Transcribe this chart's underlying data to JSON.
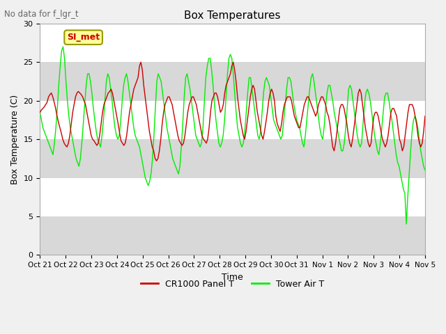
{
  "title": "Box Temperatures",
  "xlabel": "Time",
  "ylabel": "Box Temperature (C)",
  "figtext_no_data": "No data for f_lgr_t",
  "annotation_text": "SI_met",
  "ylim": [
    0,
    30
  ],
  "yticks": [
    0,
    5,
    10,
    15,
    20,
    25,
    30
  ],
  "xtick_labels": [
    "Oct 21",
    "Oct 22",
    "Oct 23",
    "Oct 24",
    "Oct 25",
    "Oct 26",
    "Oct 27",
    "Oct 28",
    "Oct 29",
    "Oct 30",
    "Oct 31",
    "Nov 1",
    "Nov 2",
    "Nov 3",
    "Nov 4",
    "Nov 5"
  ],
  "bands": [
    [
      0,
      5,
      "#d8d8d8"
    ],
    [
      5,
      10,
      "#ffffff"
    ],
    [
      10,
      15,
      "#d8d8d8"
    ],
    [
      15,
      20,
      "#ffffff"
    ],
    [
      20,
      25,
      "#d8d8d8"
    ],
    [
      25,
      30,
      "#ffffff"
    ]
  ],
  "legend_entries": [
    {
      "label": "CR1000 Panel T",
      "color": "#cc0000"
    },
    {
      "label": "Tower Air T",
      "color": "#00ee00"
    }
  ],
  "panel_t": [
    18.5,
    18.8,
    19.0,
    19.2,
    19.5,
    19.8,
    20.5,
    20.8,
    21.0,
    20.5,
    19.8,
    19.0,
    18.0,
    17.2,
    16.5,
    15.8,
    15.0,
    14.5,
    14.2,
    14.0,
    14.5,
    15.5,
    17.0,
    18.5,
    19.5,
    20.5,
    21.0,
    21.2,
    21.0,
    20.8,
    20.5,
    20.0,
    19.5,
    18.5,
    17.5,
    16.5,
    15.5,
    15.0,
    14.8,
    14.5,
    14.2,
    14.5,
    15.5,
    17.0,
    18.5,
    19.5,
    20.0,
    20.5,
    21.0,
    21.2,
    21.5,
    21.0,
    20.0,
    19.0,
    18.0,
    17.0,
    15.8,
    14.8,
    14.5,
    14.2,
    14.5,
    15.5,
    17.0,
    18.5,
    19.5,
    20.5,
    21.5,
    22.0,
    22.5,
    23.0,
    24.5,
    25.0,
    24.0,
    22.0,
    20.5,
    19.0,
    17.5,
    16.0,
    15.0,
    14.0,
    13.5,
    12.5,
    12.2,
    12.5,
    13.5,
    15.0,
    17.0,
    18.5,
    19.5,
    20.0,
    20.5,
    20.5,
    20.0,
    19.5,
    18.5,
    17.5,
    16.5,
    15.5,
    14.8,
    14.5,
    14.2,
    14.5,
    15.5,
    17.0,
    18.5,
    19.5,
    20.0,
    20.5,
    20.5,
    20.0,
    19.5,
    18.5,
    17.5,
    16.5,
    15.5,
    15.0,
    14.8,
    14.5,
    15.0,
    16.5,
    18.5,
    20.0,
    20.5,
    21.0,
    21.0,
    20.5,
    19.5,
    18.5,
    18.8,
    19.5,
    21.0,
    22.0,
    22.5,
    23.0,
    23.5,
    24.5,
    25.0,
    24.0,
    22.5,
    20.5,
    19.0,
    17.5,
    16.5,
    15.5,
    15.0,
    16.0,
    17.5,
    19.0,
    20.5,
    21.5,
    22.0,
    21.5,
    20.0,
    18.5,
    17.5,
    16.5,
    15.5,
    15.0,
    16.0,
    17.2,
    18.5,
    20.0,
    21.0,
    21.5,
    21.0,
    20.0,
    18.0,
    17.0,
    16.5,
    16.0,
    17.0,
    18.5,
    19.5,
    20.0,
    20.5,
    20.5,
    20.5,
    20.0,
    19.0,
    18.0,
    17.5,
    17.0,
    16.5,
    16.5,
    17.5,
    18.5,
    19.5,
    20.0,
    20.5,
    20.5,
    20.0,
    19.5,
    19.0,
    18.5,
    18.0,
    18.5,
    19.5,
    20.0,
    20.5,
    20.5,
    20.0,
    19.5,
    18.5,
    18.0,
    17.0,
    15.5,
    14.0,
    13.5,
    14.5,
    16.0,
    17.5,
    19.0,
    19.5,
    19.5,
    19.0,
    18.0,
    17.0,
    15.5,
    14.5,
    14.0,
    15.0,
    16.5,
    18.0,
    19.5,
    21.0,
    21.5,
    21.0,
    19.5,
    18.0,
    16.5,
    15.5,
    14.5,
    14.0,
    14.5,
    16.5,
    18.0,
    18.5,
    18.5,
    18.0,
    17.0,
    16.0,
    15.0,
    14.5,
    14.0,
    14.5,
    15.5,
    17.0,
    18.5,
    19.0,
    19.0,
    18.5,
    18.0,
    16.5,
    15.0,
    14.5,
    13.5,
    14.0,
    15.5,
    17.0,
    18.5,
    19.5,
    19.5,
    19.5,
    19.0,
    18.0,
    17.0,
    15.5,
    14.5,
    14.0,
    14.5,
    16.0,
    18.0
  ],
  "tower_t": [
    18.5,
    17.5,
    16.5,
    16.0,
    15.5,
    15.0,
    14.5,
    14.0,
    13.5,
    13.0,
    14.5,
    16.5,
    19.0,
    22.0,
    24.5,
    26.5,
    27.0,
    25.5,
    22.5,
    20.0,
    18.0,
    16.5,
    15.5,
    14.5,
    13.5,
    12.5,
    12.0,
    11.5,
    12.5,
    14.5,
    17.0,
    19.5,
    22.0,
    23.5,
    23.5,
    22.5,
    21.0,
    19.0,
    17.5,
    16.0,
    15.0,
    14.5,
    14.0,
    15.5,
    17.5,
    20.0,
    22.5,
    23.5,
    23.0,
    21.5,
    20.0,
    18.0,
    16.5,
    15.5,
    15.0,
    15.5,
    17.5,
    20.0,
    22.0,
    23.0,
    23.5,
    22.5,
    21.0,
    19.5,
    18.0,
    16.5,
    15.5,
    15.0,
    14.5,
    14.0,
    13.0,
    12.0,
    11.0,
    10.0,
    9.5,
    9.0,
    9.5,
    10.5,
    12.5,
    15.5,
    19.0,
    22.5,
    23.5,
    23.0,
    22.5,
    21.0,
    19.5,
    18.0,
    16.5,
    15.5,
    14.5,
    13.5,
    12.5,
    12.0,
    11.5,
    11.0,
    10.5,
    11.5,
    14.0,
    17.0,
    20.5,
    23.0,
    23.5,
    22.5,
    21.5,
    20.0,
    18.5,
    17.0,
    15.5,
    15.0,
    14.5,
    14.0,
    14.5,
    16.5,
    20.0,
    23.0,
    24.5,
    25.5,
    25.5,
    24.0,
    22.0,
    19.5,
    17.5,
    16.0,
    14.5,
    14.0,
    14.5,
    15.5,
    17.5,
    20.5,
    23.5,
    25.5,
    26.0,
    25.5,
    23.5,
    21.0,
    18.5,
    16.5,
    15.5,
    14.5,
    14.0,
    14.5,
    16.0,
    18.5,
    21.0,
    23.0,
    23.0,
    21.5,
    20.0,
    18.5,
    17.0,
    15.5,
    15.0,
    16.0,
    18.5,
    21.0,
    22.5,
    23.0,
    22.5,
    22.0,
    20.5,
    19.0,
    17.5,
    17.0,
    16.5,
    16.0,
    15.5,
    15.0,
    15.5,
    17.5,
    19.5,
    21.5,
    23.0,
    23.0,
    22.5,
    21.0,
    19.5,
    18.5,
    17.5,
    17.0,
    16.5,
    15.5,
    14.5,
    14.0,
    15.5,
    17.5,
    19.5,
    21.5,
    23.0,
    23.5,
    22.5,
    21.0,
    19.5,
    18.0,
    16.5,
    15.5,
    15.0,
    16.5,
    19.0,
    21.0,
    22.0,
    22.0,
    21.0,
    20.0,
    18.5,
    17.5,
    16.5,
    15.5,
    14.5,
    13.5,
    13.5,
    14.5,
    16.5,
    19.0,
    21.5,
    22.0,
    21.5,
    20.0,
    18.5,
    17.0,
    15.5,
    14.5,
    14.0,
    14.5,
    17.0,
    19.5,
    21.0,
    21.5,
    21.0,
    20.0,
    18.5,
    17.0,
    15.5,
    14.5,
    13.5,
    13.0,
    14.5,
    16.5,
    18.5,
    20.5,
    21.0,
    21.0,
    20.0,
    18.5,
    17.5,
    16.0,
    14.5,
    13.0,
    12.0,
    11.5,
    10.5,
    9.5,
    8.5,
    8.0,
    4.0,
    7.5,
    10.5,
    13.5,
    16.0,
    17.5,
    18.0,
    17.5,
    16.5,
    15.0,
    13.5,
    12.5,
    11.5,
    11.0
  ],
  "background_color": "#f0f0f0",
  "plot_bg_color": "#ffffff",
  "figsize": [
    6.4,
    4.8
  ],
  "dpi": 100
}
